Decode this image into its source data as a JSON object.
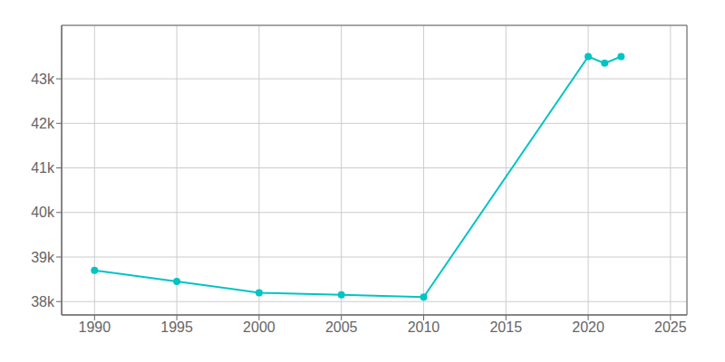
{
  "chart_data": {
    "type": "line",
    "x": [
      1990,
      1995,
      2000,
      2005,
      2010,
      2020,
      2021,
      2022
    ],
    "values": [
      38700,
      38450,
      38200,
      38150,
      38100,
      43500,
      43350,
      43500
    ],
    "color": "#00C4C4",
    "marker": "circle",
    "xlim": [
      1988,
      2026
    ],
    "xticks": [
      1990,
      1995,
      2000,
      2005,
      2010,
      2015,
      2020,
      2025
    ],
    "ylim": [
      37700,
      44200
    ],
    "yticks": [
      {
        "value": 38000,
        "label": "38k"
      },
      {
        "value": 39000,
        "label": "39k"
      },
      {
        "value": 40000,
        "label": "40k"
      },
      {
        "value": 41000,
        "label": "41k"
      },
      {
        "value": 42000,
        "label": "42k"
      },
      {
        "value": 43000,
        "label": "43k"
      }
    ],
    "grid": true
  }
}
